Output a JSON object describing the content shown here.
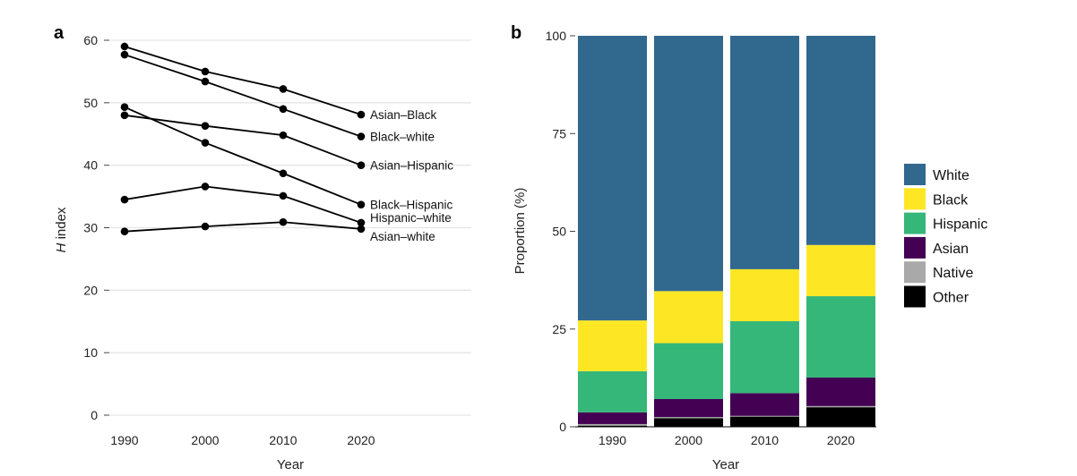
{
  "charts": [
    {
      "panel_label": "a",
      "chart_data": {
        "type": "line",
        "x": [
          1990,
          2000,
          2010,
          2020
        ],
        "x_ticks": [
          "1990",
          "2000",
          "2010",
          "2020"
        ],
        "xlabel": "Year",
        "ylabel_italic": "H",
        "ylabel_rest": " index",
        "ylim": [
          0,
          60
        ],
        "y_ticks": [
          0,
          10,
          20,
          30,
          40,
          50,
          60
        ],
        "grid": "horizontal",
        "series": [
          {
            "name": "Asian–Black",
            "values": [
              59.0,
              55.0,
              52.2,
              48.1
            ]
          },
          {
            "name": "Black–white",
            "values": [
              57.7,
              53.4,
              49.0,
              44.6
            ]
          },
          {
            "name": "Asian–Hispanic",
            "values": [
              48.0,
              46.3,
              44.8,
              40.0
            ]
          },
          {
            "name": "Black–Hispanic",
            "values": [
              49.3,
              43.6,
              38.7,
              33.7
            ]
          },
          {
            "name": "Hispanic–white",
            "values": [
              34.5,
              36.6,
              35.1,
              30.8
            ]
          },
          {
            "name": "Asian–white",
            "values": [
              29.4,
              30.2,
              30.9,
              29.8
            ]
          }
        ]
      }
    },
    {
      "panel_label": "b",
      "chart_data": {
        "type": "bar",
        "stacked": true,
        "categories": [
          "1990",
          "2000",
          "2010",
          "2020"
        ],
        "xlabel": "Year",
        "ylabel": "Proportion (%)",
        "ylim": [
          0,
          100
        ],
        "y_ticks": [
          0,
          25,
          50,
          75,
          100
        ],
        "legend": "right",
        "series": [
          {
            "name": "Other",
            "color": "#000000",
            "values": [
              0.3,
              2.2,
              2.6,
              5.0
            ]
          },
          {
            "name": "Native",
            "color": "#a9a9a9",
            "values": [
              0.4,
              0.3,
              0.2,
              0.3
            ]
          },
          {
            "name": "Asian",
            "color": "#440154",
            "values": [
              3.0,
              4.6,
              5.8,
              7.3
            ]
          },
          {
            "name": "Hispanic",
            "color": "#35b779",
            "values": [
              10.5,
              14.3,
              18.4,
              20.8
            ]
          },
          {
            "name": "Black",
            "color": "#fde725",
            "values": [
              13.0,
              13.3,
              13.3,
              13.1
            ]
          },
          {
            "name": "White",
            "color": "#31688e",
            "values": [
              72.8,
              65.3,
              59.7,
              53.5
            ]
          }
        ],
        "legend_order": [
          "White",
          "Black",
          "Hispanic",
          "Asian",
          "Native",
          "Other"
        ]
      }
    }
  ]
}
